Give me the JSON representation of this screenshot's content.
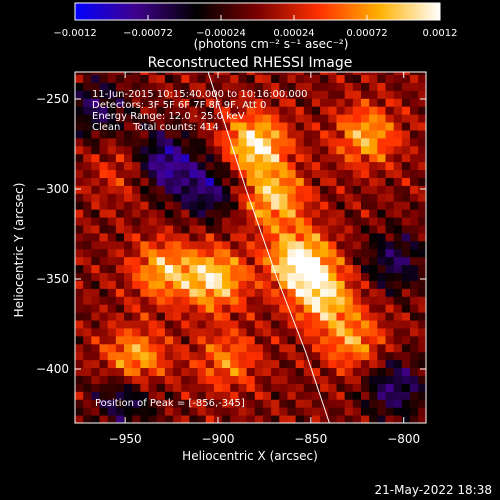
{
  "colorbar": {
    "ticks": [
      "−0.0012",
      "−0.00072",
      "−0.00024",
      "0.00024",
      "0.00072",
      "0.0012"
    ],
    "units_label": "(photons cm⁻² s⁻¹ asec⁻²)",
    "range": [
      -0.0012,
      0.0012
    ],
    "colormap": [
      "#0000ff",
      "#40008c",
      "#000000",
      "#7a0000",
      "#ff3000",
      "#ffb000",
      "#ffffff"
    ]
  },
  "chart_data": {
    "type": "heatmap",
    "title": "Reconstructed RHESSI Image",
    "xlabel": "Heliocentric X (arcsec)",
    "ylabel": "Heliocentric Y (arcsec)",
    "xlim": [
      -977,
      -788
    ],
    "ylim": [
      -430,
      -235
    ],
    "xticks": [
      -950,
      -900,
      -850,
      -800
    ],
    "yticks": [
      -250,
      -300,
      -350,
      -400
    ],
    "xtick_labels": [
      "−950",
      "−900",
      "−850",
      "−800"
    ],
    "ytick_labels": [
      "−250",
      "−300",
      "−350",
      "−400"
    ],
    "grid": false,
    "annotations": {
      "time_range": "11-Jun-2015 10:15:40.000 to 10:16:00.000",
      "detectors": "Detectors: 3F 5F 6F 7F 8F 9F, Att 0",
      "energy_range": "Energy Range: 12.0 - 25.0 keV",
      "method_counts": "Clean    Total counts: 414",
      "peak_position": "Position of Peak = [-856,-345]"
    },
    "peak": [
      -856,
      -345
    ],
    "limb_curve": [
      [
        -906,
        -233
      ],
      [
        -885,
        -300
      ],
      [
        -868,
        -350
      ],
      [
        -853,
        -390
      ],
      [
        -840,
        -430
      ]
    ],
    "bright_sources": [
      {
        "x": -880,
        "y": -275,
        "intensity": 0.0011
      },
      {
        "x": -870,
        "y": -305,
        "intensity": 0.0009
      },
      {
        "x": -856,
        "y": -340,
        "intensity": 0.0012
      },
      {
        "x": -843,
        "y": -360,
        "intensity": 0.0009
      },
      {
        "x": -902,
        "y": -350,
        "intensity": 0.001
      },
      {
        "x": -930,
        "y": -345,
        "intensity": 0.0008
      },
      {
        "x": -945,
        "y": -395,
        "intensity": 0.0009
      },
      {
        "x": -820,
        "y": -270,
        "intensity": 0.0008
      },
      {
        "x": -895,
        "y": -395,
        "intensity": 0.0006
      },
      {
        "x": -827,
        "y": -385,
        "intensity": 0.0007
      },
      {
        "x": -950,
        "y": -290,
        "intensity": 0.0004
      }
    ],
    "dark_regions": [
      {
        "x": -930,
        "y": -285,
        "intensity": -0.0009
      },
      {
        "x": -905,
        "y": -300,
        "intensity": -0.0007
      },
      {
        "x": -965,
        "y": -255,
        "intensity": -0.0006
      },
      {
        "x": -950,
        "y": -415,
        "intensity": -0.0007
      },
      {
        "x": -805,
        "y": -340,
        "intensity": -0.0006
      },
      {
        "x": -805,
        "y": -410,
        "intensity": -0.0007
      }
    ]
  },
  "footer": {
    "timestamp": "21-May-2022 18:38"
  }
}
